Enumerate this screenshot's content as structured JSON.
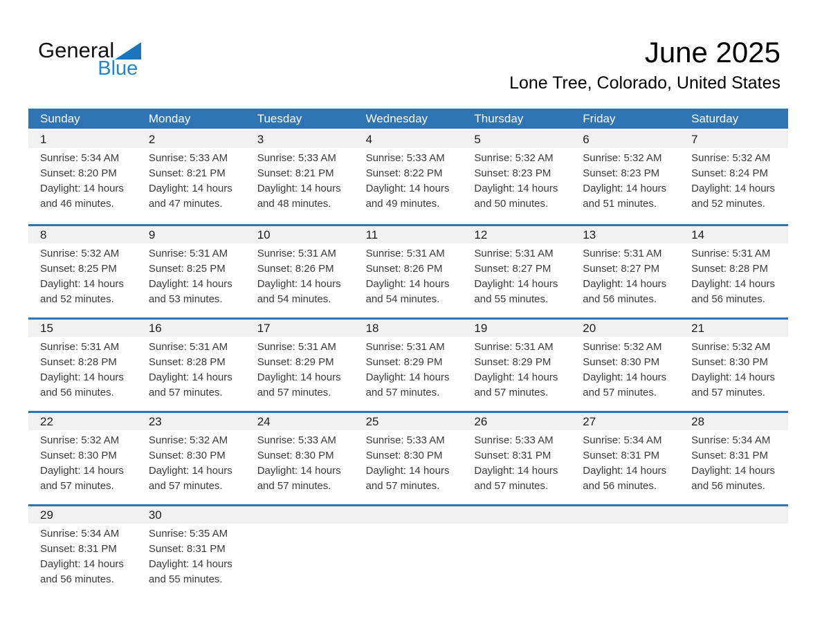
{
  "logo": {
    "word_top": "General",
    "word_bottom": "Blue"
  },
  "header": {
    "title": "June 2025",
    "subtitle": "Lone Tree, Colorado, United States"
  },
  "colors": {
    "header_bar_blue": "#2E74B5",
    "week_divider_blue": "#2E74B5",
    "day_number_strip_gray": "#F1F1F1",
    "logo_triangle_blue": "#1C75BB",
    "logo_text_blue": "#2287C8",
    "weekday_text": "#FFFFFF",
    "info_text": "#3A3A3A"
  },
  "weekdays": [
    "Sunday",
    "Monday",
    "Tuesday",
    "Wednesday",
    "Thursday",
    "Friday",
    "Saturday"
  ],
  "weeks": [
    [
      {
        "day": "1",
        "lines": [
          "Sunrise: 5:34 AM",
          "Sunset: 8:20 PM",
          "Daylight: 14 hours",
          "and 46 minutes."
        ]
      },
      {
        "day": "2",
        "lines": [
          "Sunrise: 5:33 AM",
          "Sunset: 8:21 PM",
          "Daylight: 14 hours",
          "and 47 minutes."
        ]
      },
      {
        "day": "3",
        "lines": [
          "Sunrise: 5:33 AM",
          "Sunset: 8:21 PM",
          "Daylight: 14 hours",
          "and 48 minutes."
        ]
      },
      {
        "day": "4",
        "lines": [
          "Sunrise: 5:33 AM",
          "Sunset: 8:22 PM",
          "Daylight: 14 hours",
          "and 49 minutes."
        ]
      },
      {
        "day": "5",
        "lines": [
          "Sunrise: 5:32 AM",
          "Sunset: 8:23 PM",
          "Daylight: 14 hours",
          "and 50 minutes."
        ]
      },
      {
        "day": "6",
        "lines": [
          "Sunrise: 5:32 AM",
          "Sunset: 8:23 PM",
          "Daylight: 14 hours",
          "and 51 minutes."
        ]
      },
      {
        "day": "7",
        "lines": [
          "Sunrise: 5:32 AM",
          "Sunset: 8:24 PM",
          "Daylight: 14 hours",
          "and 52 minutes."
        ]
      }
    ],
    [
      {
        "day": "8",
        "lines": [
          "Sunrise: 5:32 AM",
          "Sunset: 8:25 PM",
          "Daylight: 14 hours",
          "and 52 minutes."
        ]
      },
      {
        "day": "9",
        "lines": [
          "Sunrise: 5:31 AM",
          "Sunset: 8:25 PM",
          "Daylight: 14 hours",
          "and 53 minutes."
        ]
      },
      {
        "day": "10",
        "lines": [
          "Sunrise: 5:31 AM",
          "Sunset: 8:26 PM",
          "Daylight: 14 hours",
          "and 54 minutes."
        ]
      },
      {
        "day": "11",
        "lines": [
          "Sunrise: 5:31 AM",
          "Sunset: 8:26 PM",
          "Daylight: 14 hours",
          "and 54 minutes."
        ]
      },
      {
        "day": "12",
        "lines": [
          "Sunrise: 5:31 AM",
          "Sunset: 8:27 PM",
          "Daylight: 14 hours",
          "and 55 minutes."
        ]
      },
      {
        "day": "13",
        "lines": [
          "Sunrise: 5:31 AM",
          "Sunset: 8:27 PM",
          "Daylight: 14 hours",
          "and 56 minutes."
        ]
      },
      {
        "day": "14",
        "lines": [
          "Sunrise: 5:31 AM",
          "Sunset: 8:28 PM",
          "Daylight: 14 hours",
          "and 56 minutes."
        ]
      }
    ],
    [
      {
        "day": "15",
        "lines": [
          "Sunrise: 5:31 AM",
          "Sunset: 8:28 PM",
          "Daylight: 14 hours",
          "and 56 minutes."
        ]
      },
      {
        "day": "16",
        "lines": [
          "Sunrise: 5:31 AM",
          "Sunset: 8:28 PM",
          "Daylight: 14 hours",
          "and 57 minutes."
        ]
      },
      {
        "day": "17",
        "lines": [
          "Sunrise: 5:31 AM",
          "Sunset: 8:29 PM",
          "Daylight: 14 hours",
          "and 57 minutes."
        ]
      },
      {
        "day": "18",
        "lines": [
          "Sunrise: 5:31 AM",
          "Sunset: 8:29 PM",
          "Daylight: 14 hours",
          "and 57 minutes."
        ]
      },
      {
        "day": "19",
        "lines": [
          "Sunrise: 5:31 AM",
          "Sunset: 8:29 PM",
          "Daylight: 14 hours",
          "and 57 minutes."
        ]
      },
      {
        "day": "20",
        "lines": [
          "Sunrise: 5:32 AM",
          "Sunset: 8:30 PM",
          "Daylight: 14 hours",
          "and 57 minutes."
        ]
      },
      {
        "day": "21",
        "lines": [
          "Sunrise: 5:32 AM",
          "Sunset: 8:30 PM",
          "Daylight: 14 hours",
          "and 57 minutes."
        ]
      }
    ],
    [
      {
        "day": "22",
        "lines": [
          "Sunrise: 5:32 AM",
          "Sunset: 8:30 PM",
          "Daylight: 14 hours",
          "and 57 minutes."
        ]
      },
      {
        "day": "23",
        "lines": [
          "Sunrise: 5:32 AM",
          "Sunset: 8:30 PM",
          "Daylight: 14 hours",
          "and 57 minutes."
        ]
      },
      {
        "day": "24",
        "lines": [
          "Sunrise: 5:33 AM",
          "Sunset: 8:30 PM",
          "Daylight: 14 hours",
          "and 57 minutes."
        ]
      },
      {
        "day": "25",
        "lines": [
          "Sunrise: 5:33 AM",
          "Sunset: 8:30 PM",
          "Daylight: 14 hours",
          "and 57 minutes."
        ]
      },
      {
        "day": "26",
        "lines": [
          "Sunrise: 5:33 AM",
          "Sunset: 8:31 PM",
          "Daylight: 14 hours",
          "and 57 minutes."
        ]
      },
      {
        "day": "27",
        "lines": [
          "Sunrise: 5:34 AM",
          "Sunset: 8:31 PM",
          "Daylight: 14 hours",
          "and 56 minutes."
        ]
      },
      {
        "day": "28",
        "lines": [
          "Sunrise: 5:34 AM",
          "Sunset: 8:31 PM",
          "Daylight: 14 hours",
          "and 56 minutes."
        ]
      }
    ],
    [
      {
        "day": "29",
        "lines": [
          "Sunrise: 5:34 AM",
          "Sunset: 8:31 PM",
          "Daylight: 14 hours",
          "and 56 minutes."
        ]
      },
      {
        "day": "30",
        "lines": [
          "Sunrise: 5:35 AM",
          "Sunset: 8:31 PM",
          "Daylight: 14 hours",
          "and 55 minutes."
        ]
      },
      null,
      null,
      null,
      null,
      null
    ]
  ]
}
